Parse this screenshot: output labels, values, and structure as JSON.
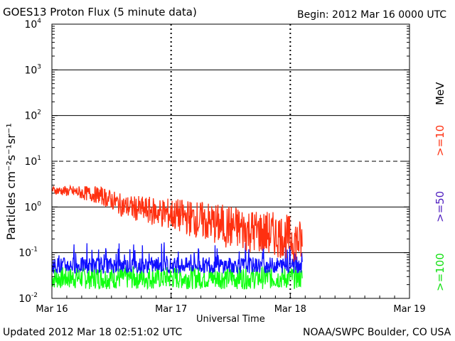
{
  "header": {
    "title": "GOES13 Proton Flux (5 minute data)",
    "begin": "Begin: 2012 Mar 16 0000 UTC"
  },
  "footer": {
    "updated": "Updated 2012 Mar 18 02:51:02 UTC",
    "credit": "NOAA/SWPC Boulder, CO USA"
  },
  "chart_data": {
    "type": "line",
    "title": "GOES13 Proton Flux (5 minute data)",
    "xlabel": "Universal Time",
    "ylabel": "Particles cm⁻²s⁻¹sr⁻¹",
    "yscale": "log",
    "ylim": [
      0.01,
      10000
    ],
    "xlim": [
      0,
      3
    ],
    "x_units": "days since 2012 Mar 16 00:00 UTC",
    "data_end": 2.1,
    "xticks": [
      {
        "value": 0,
        "label": "Mar 16"
      },
      {
        "value": 1,
        "label": "Mar 17"
      },
      {
        "value": 2,
        "label": "Mar 18"
      },
      {
        "value": 3,
        "label": "Mar 19"
      }
    ],
    "yticks": [
      {
        "value": 0.01,
        "base": "10",
        "exp": "-2"
      },
      {
        "value": 0.1,
        "base": "10",
        "exp": "-1"
      },
      {
        "value": 1,
        "base": "10",
        "exp": "0"
      },
      {
        "value": 10,
        "base": "10",
        "exp": "1"
      },
      {
        "value": 100,
        "base": "10",
        "exp": "2"
      },
      {
        "value": 1000,
        "base": "10",
        "exp": "3"
      },
      {
        "value": 10000,
        "base": "10",
        "exp": "4"
      }
    ],
    "threshold_levels": [
      0.1,
      1,
      100,
      1000
    ],
    "dashed_levels": [
      10
    ],
    "unit_label": "MeV",
    "series": [
      {
        "name": ">=10",
        "color": "#ff3010",
        "points": [
          [
            0,
            2.4
          ],
          [
            0.2,
            2.2
          ],
          [
            0.4,
            1.9
          ],
          [
            0.5,
            1.5
          ],
          [
            0.6,
            1.1
          ],
          [
            0.8,
            0.9
          ],
          [
            1.0,
            0.75
          ],
          [
            1.2,
            0.6
          ],
          [
            1.4,
            0.45
          ],
          [
            1.6,
            0.37
          ],
          [
            1.8,
            0.3
          ],
          [
            2.0,
            0.24
          ],
          [
            2.1,
            0.18
          ]
        ]
      },
      {
        "name": ">=50",
        "color": "#1010ff",
        "points": [
          [
            0,
            0.055
          ],
          [
            0.5,
            0.055
          ],
          [
            1.0,
            0.055
          ],
          [
            1.5,
            0.055
          ],
          [
            2.1,
            0.055
          ]
        ]
      },
      {
        "name": ">=100",
        "color": "#10ff10",
        "points": [
          [
            0,
            0.03
          ],
          [
            0.5,
            0.03
          ],
          [
            1.0,
            0.03
          ],
          [
            1.5,
            0.03
          ],
          [
            2.1,
            0.03
          ]
        ]
      }
    ]
  }
}
